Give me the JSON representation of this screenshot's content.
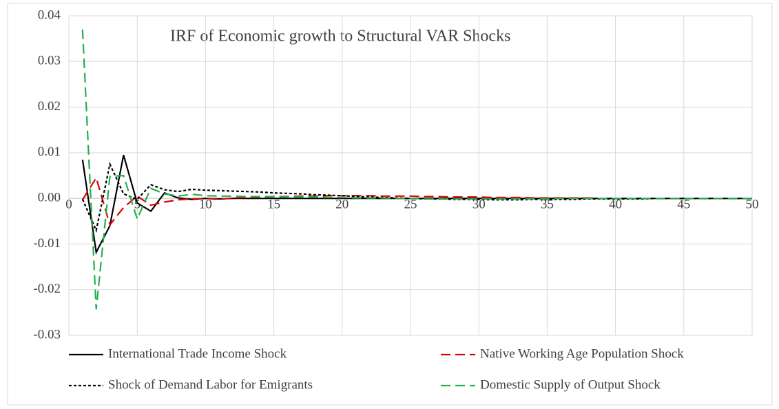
{
  "chart_data": {
    "type": "line",
    "title": "IRF of Economic growth to Structural VAR Shocks",
    "x": [
      1,
      2,
      3,
      4,
      5,
      6,
      7,
      8,
      9,
      10,
      11,
      12,
      13,
      14,
      15,
      16,
      17,
      18,
      19,
      20,
      21,
      22,
      23,
      24,
      25,
      26,
      27,
      28,
      29,
      30,
      31,
      32,
      33,
      34,
      35,
      36,
      37,
      38,
      39,
      40,
      41,
      42,
      43,
      44,
      45,
      46,
      47,
      48,
      49,
      50
    ],
    "series": [
      {
        "name": "International Trade Income Shock",
        "color": "#000000",
        "dash": "solid",
        "values": [
          0.0085,
          -0.0118,
          -0.006,
          0.0095,
          -0.001,
          -0.0028,
          0.0012,
          0.0001,
          -0.0002,
          0,
          -0.0001,
          0,
          0,
          0,
          0,
          0,
          0,
          0,
          0,
          0,
          0,
          0,
          0,
          0,
          0,
          0,
          0,
          0,
          0,
          0,
          0,
          0,
          0,
          0,
          0,
          0,
          0,
          0,
          0,
          0,
          0,
          0,
          0,
          0,
          0,
          0,
          0,
          0,
          0,
          0
        ]
      },
      {
        "name": "Native Working Age Population Shock",
        "color": "#e00000",
        "dash": "dashed",
        "values": [
          -0.0003,
          0.0045,
          -0.0058,
          -0.002,
          0.0005,
          -0.0015,
          -0.0008,
          -0.0003,
          -0.0001,
          0,
          -0.0002,
          0.0001,
          0.0002,
          0.0003,
          0.0004,
          0.0004,
          0.0005,
          0.0005,
          0.0006,
          0.0006,
          0.0006,
          0.0006,
          0.0005,
          0.0005,
          0.0005,
          0.0004,
          0.0004,
          0.0003,
          0.0003,
          0.0003,
          0.0002,
          0.0002,
          0.0002,
          0.0001,
          0.0001,
          0.0001,
          0.0001,
          0.0001,
          0,
          0,
          0,
          0,
          0,
          0,
          0,
          0,
          0,
          0,
          0,
          0
        ]
      },
      {
        "name": "Shock of Demand Labor for Emigrants",
        "color": "#000000",
        "dash": "dotted",
        "values": [
          -0.0002,
          -0.007,
          0.0075,
          0.001,
          -0.0002,
          0.003,
          0.0019,
          0.0015,
          0.002,
          0.0018,
          0.0017,
          0.0016,
          0.0015,
          0.0014,
          0.0012,
          0.0011,
          0.001,
          0.0008,
          0.0007,
          0.0006,
          0.0004,
          0.0003,
          0.0002,
          0.0001,
          0,
          -0.0001,
          -0.0001,
          -0.0002,
          -0.0002,
          -0.0002,
          -0.0003,
          -0.0003,
          -0.0003,
          -0.0002,
          -0.0002,
          -0.0002,
          -0.0002,
          -0.0001,
          -0.0001,
          -0.0001,
          -0.0001,
          -0.0001,
          0,
          0,
          0,
          0,
          0,
          0,
          0,
          0
        ]
      },
      {
        "name": "Domestic Supply of Output Shock",
        "color": "#22b04b",
        "dash": "dashed",
        "values": [
          0.037,
          -0.0243,
          0.0048,
          0.005,
          -0.0045,
          0.0022,
          0.001,
          0.0005,
          0.0009,
          0.0006,
          0.0005,
          0.0005,
          0.0004,
          0.0004,
          0.0004,
          0.0003,
          0.0003,
          0.0003,
          0.0002,
          0.0002,
          0.0001,
          0.0001,
          0.0001,
          0,
          0,
          -0.0001,
          -0.0001,
          -0.0001,
          -0.0001,
          -0.0001,
          -0.0001,
          -0.0001,
          -0.0001,
          -0.0001,
          -0.0001,
          0,
          0,
          0,
          0,
          0,
          0,
          0,
          0,
          0,
          0,
          0,
          0,
          0,
          0,
          0
        ]
      }
    ],
    "xlim": [
      0,
      50
    ],
    "xticks": [
      0,
      5,
      10,
      15,
      20,
      25,
      30,
      35,
      40,
      45,
      50
    ],
    "ylim": [
      -0.03,
      0.04
    ],
    "yticks": [
      0.04,
      0.03,
      0.02,
      0.01,
      {
        "value": 0,
        "label": "0.00"
      },
      -0.01,
      -0.02,
      -0.03
    ],
    "grid": true,
    "legend": "bottom"
  }
}
